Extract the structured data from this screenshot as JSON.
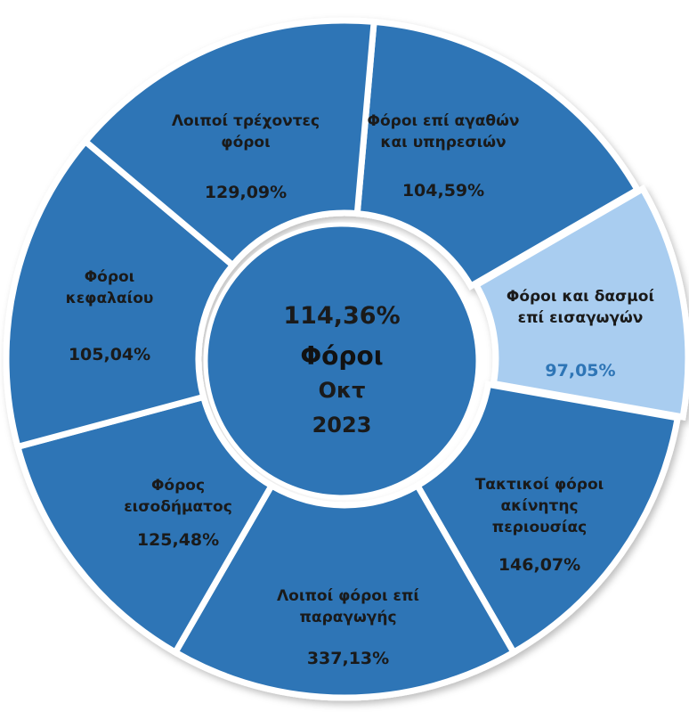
{
  "chart_data": {
    "type": "pie",
    "style": "donut",
    "center": {
      "value": "114,36%",
      "title": "Φόροι",
      "month": "Οκτ",
      "year": "2023"
    },
    "segments": [
      {
        "label_lines": [
          "Φόροι επί αγαθών",
          "και υπηρεσιών"
        ],
        "value": "104,59%",
        "highlight": false
      },
      {
        "label_lines": [
          "Φόροι και δασμοί",
          "επί εισαγωγών"
        ],
        "value": "97,05%",
        "highlight": true
      },
      {
        "label_lines": [
          "Τακτικοί φόροι",
          "ακίνητης",
          "περιουσίας"
        ],
        "value": "146,07%",
        "highlight": false
      },
      {
        "label_lines": [
          "Λοιποί φόροι επί",
          "παραγωγής"
        ],
        "value": "337,13%",
        "highlight": false
      },
      {
        "label_lines": [
          "Φόρος",
          "εισοδήματος"
        ],
        "value": "125,48%",
        "highlight": false
      },
      {
        "label_lines": [
          "Φόροι",
          "κεφαλαίου"
        ],
        "value": "105,04%",
        "highlight": false
      },
      {
        "label_lines": [
          "Λοιποί τρέχοντες",
          "φόροι"
        ],
        "value": "129,09%",
        "highlight": false
      }
    ],
    "colors": {
      "segment": "#2e75b6",
      "highlight_segment": "#a9cdf0",
      "center": "#2e75b6",
      "separator": "#ffffff",
      "text": "#1a1a1a",
      "highlight_text": "#2e75b6"
    }
  }
}
